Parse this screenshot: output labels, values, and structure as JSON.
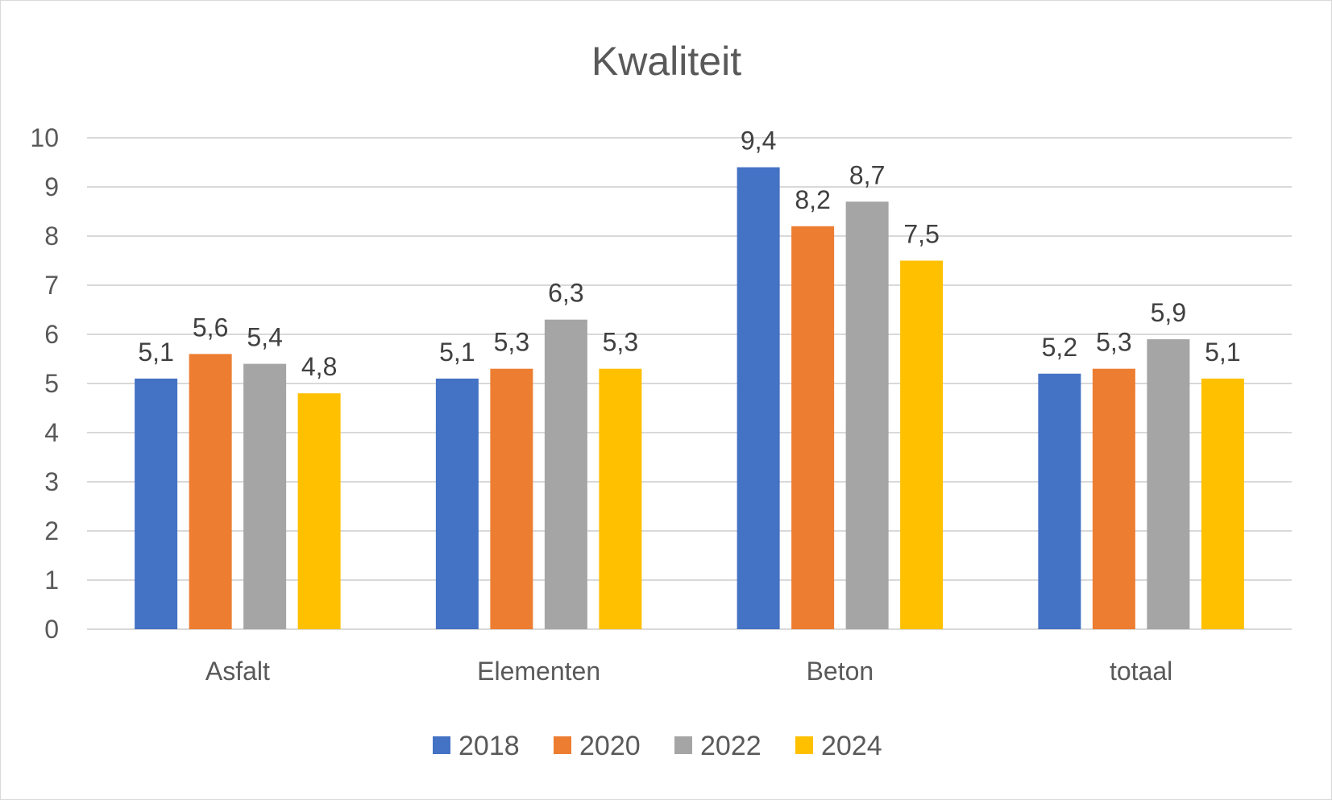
{
  "chart_data": {
    "type": "bar",
    "title": "Kwaliteit",
    "categories": [
      "Asfalt",
      "Elementen",
      "Beton",
      "totaal"
    ],
    "series": [
      {
        "name": "2018",
        "color": "#4472c4",
        "values": [
          5.1,
          5.1,
          9.4,
          5.2
        ],
        "labels": [
          "5,1",
          "5,1",
          "9,4",
          "5,2"
        ]
      },
      {
        "name": "2020",
        "color": "#ed7d31",
        "values": [
          5.6,
          5.3,
          8.2,
          5.3
        ],
        "labels": [
          "5,6",
          "5,3",
          "8,2",
          "5,3"
        ]
      },
      {
        "name": "2022",
        "color": "#a5a5a5",
        "values": [
          5.4,
          6.3,
          8.7,
          5.9
        ],
        "labels": [
          "5,4",
          "6,3",
          "8,7",
          "5,9"
        ]
      },
      {
        "name": "2024",
        "color": "#ffc000",
        "values": [
          4.8,
          5.3,
          7.5,
          5.1
        ],
        "labels": [
          "4,8",
          "5,3",
          "7,5",
          "5,1"
        ]
      }
    ],
    "yticks": [
      "0",
      "1",
      "2",
      "3",
      "4",
      "5",
      "6",
      "7",
      "8",
      "9",
      "10"
    ],
    "ylim": [
      0,
      10
    ],
    "grid": true,
    "legend": "bottom"
  }
}
